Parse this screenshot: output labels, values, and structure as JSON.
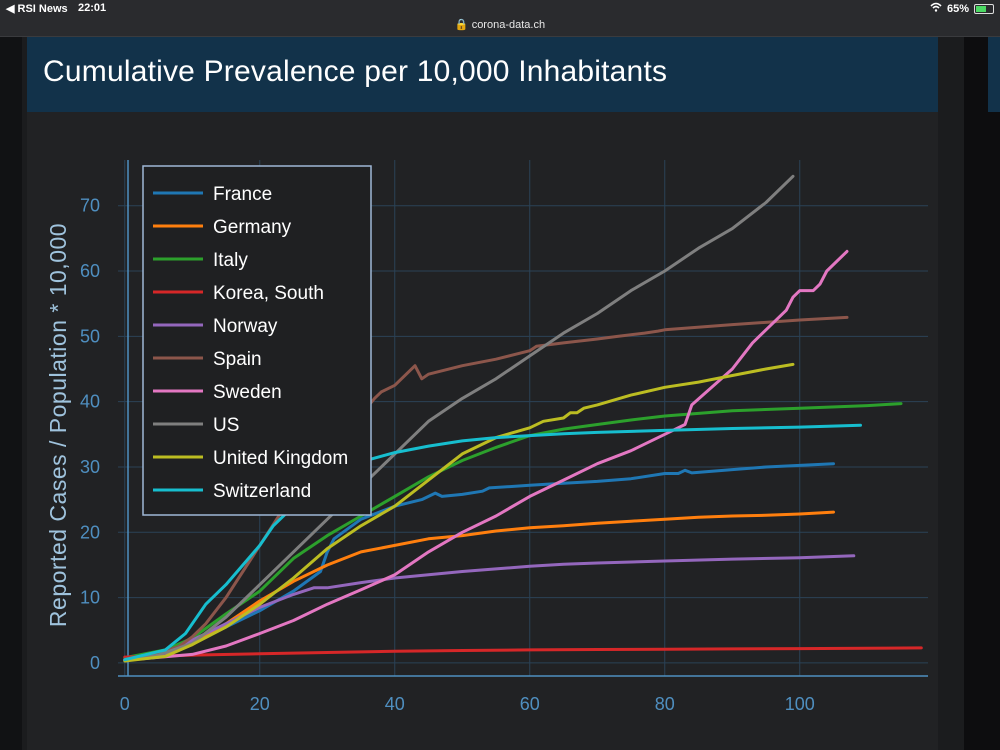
{
  "statusbar": {
    "back_label": "◀ RSI News",
    "time": "22:01",
    "url": "corona-data.ch",
    "battery": "65%",
    "battery_level": 0.65
  },
  "card": {
    "title": "Cumulative Prevalence per 10,000 Inhabitants"
  },
  "colors": {
    "France": "#1f77b4",
    "Germany": "#ff7f0e",
    "Italy": "#2ca02c",
    "Korea, South": "#d62728",
    "Norway": "#9467bd",
    "Spain": "#8c564b",
    "Sweden": "#e377c2",
    "US": "#7f7f7f",
    "United Kingdom": "#bcbd22",
    "Switzerland": "#17becf"
  },
  "chart_data": {
    "type": "line",
    "xlabel": "",
    "ylabel": "Reported Cases / Population * 10,000",
    "xlim": [
      -1,
      119
    ],
    "ylim": [
      -2,
      77
    ],
    "xticks": [
      0,
      20,
      40,
      60,
      80,
      100
    ],
    "yticks": [
      0,
      10,
      20,
      30,
      40,
      50,
      60,
      70
    ],
    "grid": true,
    "legend_position": "top-left",
    "series": [
      {
        "name": "France",
        "x": [
          0,
          6,
          10,
          15,
          20,
          25,
          29,
          30,
          31,
          35,
          40,
          44,
          46,
          47,
          50,
          53,
          54,
          60,
          65,
          70,
          75,
          80,
          82,
          83,
          84,
          90,
          95,
          105
        ],
        "y": [
          0.5,
          1.8,
          3.2,
          5.5,
          8,
          11,
          14,
          17,
          19,
          22,
          24,
          25,
          26,
          25.5,
          25.8,
          26.3,
          26.8,
          27.2,
          27.5,
          27.8,
          28.2,
          29,
          29,
          29.5,
          29.1,
          29.6,
          30,
          30.5
        ]
      },
      {
        "name": "Germany",
        "x": [
          0,
          6,
          10,
          15,
          20,
          25,
          30,
          35,
          40,
          45,
          50,
          55,
          60,
          65,
          70,
          75,
          80,
          85,
          90,
          95,
          100,
          105
        ],
        "y": [
          0.5,
          1.2,
          2.8,
          6,
          9.5,
          12.5,
          15,
          17,
          18,
          19,
          19.5,
          20.2,
          20.7,
          21,
          21.4,
          21.7,
          22,
          22.3,
          22.5,
          22.6,
          22.8,
          23.1
        ]
      },
      {
        "name": "Italy",
        "x": [
          0,
          6,
          10,
          15,
          20,
          25,
          30,
          35,
          40,
          45,
          50,
          55,
          60,
          65,
          70,
          75,
          80,
          85,
          90,
          100,
          110,
          115
        ],
        "y": [
          0.8,
          2,
          3.8,
          7.5,
          11,
          16,
          19.5,
          22.5,
          25.5,
          28.5,
          31,
          33,
          34.8,
          35.8,
          36.5,
          37.2,
          37.8,
          38.2,
          38.6,
          39,
          39.4,
          39.7
        ]
      },
      {
        "name": "Korea, South",
        "x": [
          0,
          10,
          20,
          30,
          40,
          50,
          60,
          70,
          80,
          90,
          100,
          110,
          118
        ],
        "y": [
          0.9,
          1.2,
          1.4,
          1.6,
          1.8,
          1.9,
          2,
          2.05,
          2.1,
          2.15,
          2.2,
          2.25,
          2.3
        ]
      },
      {
        "name": "Norway",
        "x": [
          0,
          6,
          10,
          15,
          20,
          25,
          28,
          30,
          35,
          40,
          45,
          50,
          55,
          60,
          65,
          70,
          80,
          90,
          100,
          108
        ],
        "y": [
          0.4,
          1.5,
          3.5,
          6,
          8.5,
          10.5,
          11.5,
          11.5,
          12.3,
          13,
          13.5,
          14,
          14.4,
          14.8,
          15.1,
          15.3,
          15.6,
          15.9,
          16.1,
          16.4
        ]
      },
      {
        "name": "Spain",
        "x": [
          0,
          5,
          8,
          10,
          12,
          15,
          20,
          25,
          30,
          35,
          37,
          38,
          40,
          43,
          44,
          45,
          50,
          55,
          60,
          61,
          65,
          70,
          73,
          77,
          79,
          80,
          90,
          100,
          107
        ],
        "y": [
          0.6,
          1.5,
          2.5,
          4,
          6,
          10,
          18,
          26,
          32,
          38,
          40.5,
          41.5,
          42.5,
          45.5,
          43.5,
          44.2,
          45.5,
          46.5,
          47.8,
          48.5,
          49,
          49.6,
          50,
          50.5,
          50.8,
          51,
          51.8,
          52.5,
          52.9
        ]
      },
      {
        "name": "Sweden",
        "x": [
          0,
          10,
          15,
          20,
          25,
          30,
          35,
          40,
          45,
          50,
          55,
          60,
          65,
          70,
          75,
          80,
          83,
          84,
          90,
          93,
          95,
          98,
          99,
          100,
          102,
          103,
          104,
          107
        ],
        "y": [
          0.4,
          1.3,
          2.6,
          4.5,
          6.5,
          9,
          11.2,
          13.5,
          17,
          20,
          22.5,
          25.5,
          28,
          30.5,
          32.5,
          35,
          36.5,
          39.5,
          45,
          49,
          51,
          54,
          56,
          57,
          57,
          58,
          60,
          63
        ]
      },
      {
        "name": "US",
        "x": [
          0,
          5,
          10,
          15,
          20,
          25,
          30,
          35,
          40,
          45,
          50,
          55,
          60,
          65,
          70,
          75,
          80,
          85,
          90,
          95,
          99
        ],
        "y": [
          0.3,
          1.2,
          3,
          7,
          12,
          17,
          22,
          27,
          32,
          37,
          40.5,
          43.5,
          47,
          50.5,
          53.5,
          57,
          60,
          63.5,
          66.5,
          70.5,
          74.5
        ]
      },
      {
        "name": "United Kingdom",
        "x": [
          0,
          6,
          10,
          15,
          20,
          25,
          30,
          35,
          40,
          45,
          50,
          55,
          60,
          62,
          65,
          66,
          67,
          68,
          70,
          75,
          80,
          85,
          90,
          95,
          99
        ],
        "y": [
          0.3,
          1,
          2.8,
          5.5,
          9,
          13,
          17.5,
          21,
          24,
          28,
          32,
          34.5,
          36,
          37,
          37.5,
          38.3,
          38.3,
          39,
          39.5,
          41,
          42.2,
          43,
          44,
          45,
          45.7
        ]
      },
      {
        "name": "Switzerland",
        "x": [
          0,
          6,
          9,
          12,
          15,
          20,
          22,
          25,
          28,
          30,
          35,
          40,
          45,
          50,
          55,
          60,
          65,
          70,
          80,
          90,
          100,
          109
        ],
        "y": [
          0.5,
          2,
          4.5,
          9,
          12,
          18,
          21,
          24,
          26.5,
          28,
          30.8,
          32.2,
          33.2,
          34,
          34.5,
          34.8,
          35.1,
          35.3,
          35.6,
          35.9,
          36.1,
          36.4
        ]
      }
    ]
  }
}
